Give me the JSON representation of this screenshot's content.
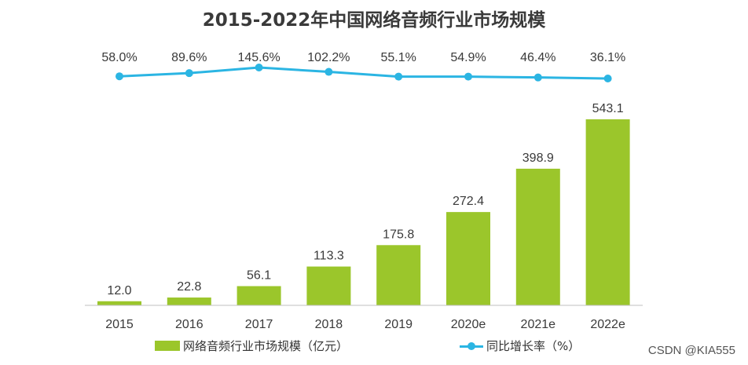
{
  "chart_data": {
    "type": "bar",
    "title": "2015-2022年中国网络音频行业市场规模",
    "categories": [
      "2015",
      "2016",
      "2017",
      "2018",
      "2019",
      "2020e",
      "2021e",
      "2022e"
    ],
    "series": [
      {
        "name": "网络音频行业市场规模（亿元）",
        "kind": "bar",
        "values": [
          12.0,
          22.8,
          56.1,
          113.3,
          175.8,
          272.4,
          398.9,
          543.1
        ],
        "labels": [
          "12.0",
          "22.8",
          "56.1",
          "113.3",
          "175.8",
          "272.4",
          "398.9",
          "543.1"
        ],
        "color": "#9bc62b"
      },
      {
        "name": "同比增长率（%）",
        "kind": "line",
        "values": [
          58.0,
          89.6,
          145.6,
          102.2,
          55.1,
          54.9,
          46.4,
          36.1
        ],
        "labels": [
          "58.0%",
          "89.6%",
          "145.6%",
          "102.2%",
          "55.1%",
          "54.9%",
          "46.4%",
          "36.1%"
        ],
        "color": "#2bb5e3"
      }
    ],
    "xlabel": "",
    "ylabel": "",
    "ylim": [
      0,
      543.1
    ],
    "grid": false,
    "legend_position": "bottom"
  },
  "watermark": "CSDN @KIA555",
  "colors": {
    "title": "#3a3a3a",
    "axis": "#bfbfbf",
    "label": "#3a3a3a"
  }
}
